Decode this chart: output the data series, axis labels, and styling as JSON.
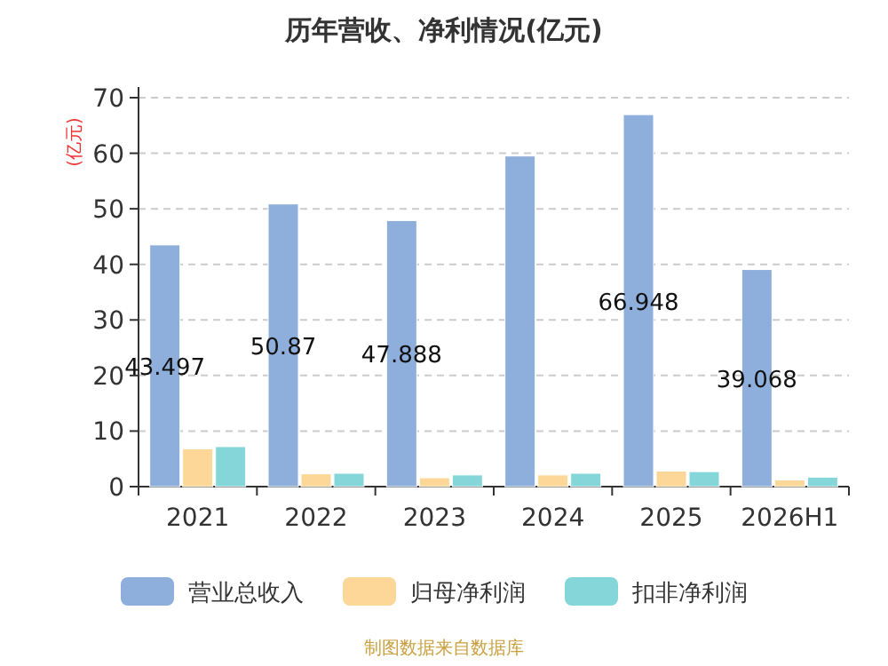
{
  "chart_data": {
    "type": "bar",
    "title": "历年营收、净利情况(亿元)",
    "ylabel": "(亿元)",
    "categories": [
      "2021",
      "2022",
      "2023",
      "2024",
      "2025",
      "2026H1"
    ],
    "series": [
      {
        "name": "营业总收入",
        "color": "#8eaedb",
        "values": [
          43.497,
          50.87,
          47.888,
          59.5,
          66.948,
          39.068
        ],
        "value_labels": [
          "43.497",
          "50.87",
          "47.888",
          null,
          "66.948",
          "39.068"
        ]
      },
      {
        "name": "归母净利润",
        "color": "#fdd797",
        "values": [
          6.8,
          2.3,
          1.6,
          2.1,
          2.8,
          1.2
        ]
      },
      {
        "name": "扣非净利润",
        "color": "#85d6d8",
        "values": [
          7.2,
          2.4,
          2.1,
          2.4,
          2.7,
          1.7
        ]
      }
    ],
    "ylim": [
      0,
      70
    ],
    "yticks": [
      0,
      10,
      20,
      30,
      40,
      50,
      60,
      70
    ],
    "grid": "y",
    "legend": "bottom",
    "annotations": [
      "制图数据来自数据库"
    ]
  }
}
